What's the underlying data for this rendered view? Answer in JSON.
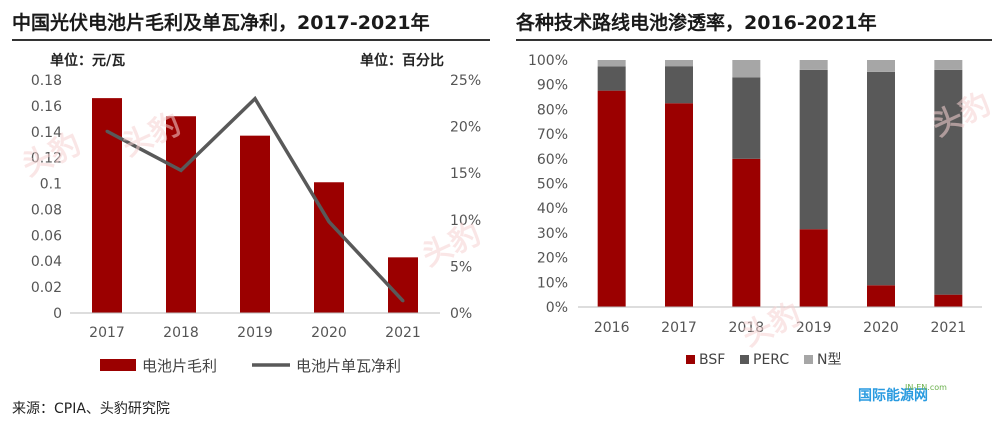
{
  "left": {
    "title": "中国光伏电池片毛利及单瓦净利，2017-2021年",
    "unit_left": "单位：元/瓦",
    "unit_right": "单位：百分比",
    "source": "来源：CPIA、头豹研究院"
  },
  "right": {
    "title": "各种技术路线电池渗透率，2016-2021年"
  },
  "watermark": "头豹",
  "logo": "国际能源网",
  "logo_sub": "IN-EN.com",
  "colors": {
    "bsf": "#9b0000",
    "perc": "#595959",
    "ntype": "#a6a6a6",
    "line": "#595959"
  },
  "chart_data": [
    {
      "type": "bar",
      "title": "中国光伏电池片毛利及单瓦净利，2017-2021年",
      "categories": [
        "2017",
        "2018",
        "2019",
        "2020",
        "2021"
      ],
      "series": [
        {
          "name": "电池片毛利",
          "type": "bar",
          "axis": "left",
          "values": [
            0.166,
            0.152,
            0.137,
            0.101,
            0.043
          ]
        },
        {
          "name": "电池片单瓦净利",
          "type": "line",
          "axis": "right",
          "values": [
            19.5,
            15.3,
            23.0,
            9.8,
            1.3
          ]
        }
      ],
      "ylim_left": [
        0,
        0.18
      ],
      "yticks_left": [
        "0",
        "0.02",
        "0.04",
        "0.06",
        "0.08",
        "0.1",
        "0.12",
        "0.14",
        "0.16",
        "0.18"
      ],
      "ylim_right": [
        0,
        25
      ],
      "yticks_right": [
        "0%",
        "5%",
        "10%",
        "15%",
        "20%",
        "25%"
      ],
      "legend_position": "bottom"
    },
    {
      "type": "bar",
      "stacked": true,
      "title": "各种技术路线电池渗透率，2016-2021年",
      "categories": [
        "2016",
        "2017",
        "2018",
        "2019",
        "2020",
        "2021"
      ],
      "series": [
        {
          "name": "BSF",
          "values": [
            87.6,
            82.5,
            60.0,
            31.5,
            8.8,
            5.0
          ]
        },
        {
          "name": "PERC",
          "values": [
            9.8,
            15.0,
            33.0,
            64.5,
            86.4,
            91.0
          ]
        },
        {
          "name": "N型",
          "values": [
            2.6,
            2.5,
            7.0,
            4.0,
            4.8,
            4.0
          ]
        }
      ],
      "ylim": [
        0,
        100
      ],
      "yticks": [
        "0%",
        "10%",
        "20%",
        "30%",
        "40%",
        "50%",
        "60%",
        "70%",
        "80%",
        "90%",
        "100%"
      ],
      "legend_position": "bottom"
    }
  ]
}
